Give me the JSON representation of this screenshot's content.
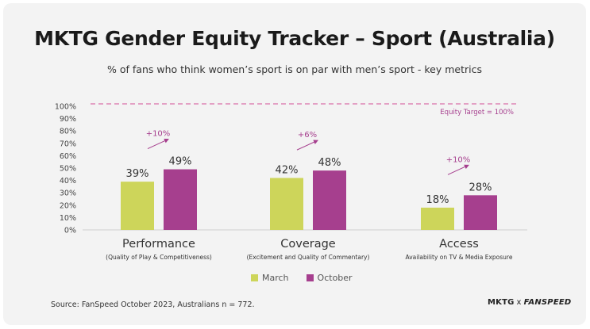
{
  "header": {
    "title": "MKTG Gender Equity Tracker – Sport (Australia)",
    "subtitle": "% of fans who think women’s sport is on par with men’s sport - key metrics"
  },
  "chart_data": {
    "type": "bar",
    "categories": [
      "Performance",
      "Coverage",
      "Access"
    ],
    "category_subtitles": [
      "(Quality of Play & Competitiveness)",
      "(Excitement and Quality of Commentary)",
      "Availability on TV & Media Exposure"
    ],
    "series": [
      {
        "name": "March",
        "values": [
          39,
          42,
          18
        ],
        "labels": [
          "39%",
          "42%",
          "18%"
        ],
        "color": "#cdd55a"
      },
      {
        "name": "October",
        "values": [
          49,
          48,
          28
        ],
        "labels": [
          "49%",
          "48%",
          "28%"
        ],
        "color": "#a63f8e"
      }
    ],
    "changes": [
      "+10%",
      "+6%",
      "+10%"
    ],
    "ylim": [
      0,
      100
    ],
    "yticks": [
      0,
      10,
      20,
      30,
      40,
      50,
      60,
      70,
      80,
      90,
      100
    ],
    "ytick_labels": [
      "0%",
      "10%",
      "20%",
      "30%",
      "40%",
      "50%",
      "60%",
      "70%",
      "80%",
      "90%",
      "100%"
    ],
    "target": {
      "value": 100,
      "label": "Equity Target = 100%",
      "color": "#d96fa9"
    },
    "legend_position": "bottom-center",
    "grid": false
  },
  "footer": {
    "source": "Source: FanSpeed October 2023, Australians n = 772.",
    "logo_left": "MKTG",
    "logo_x": "x",
    "logo_right": "FANSPEED"
  }
}
